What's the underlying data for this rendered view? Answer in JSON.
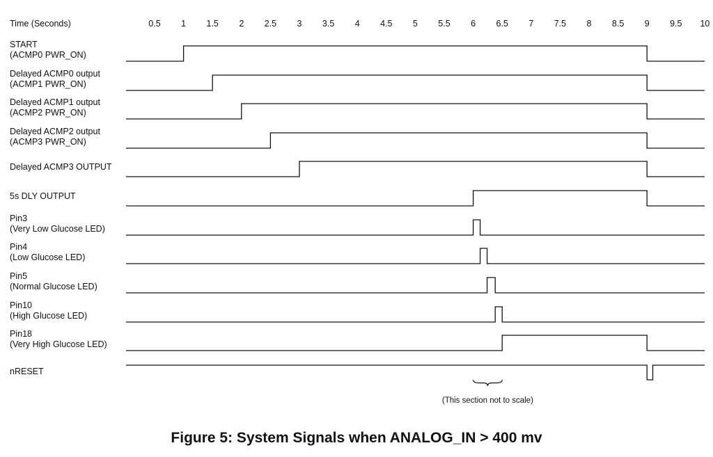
{
  "header": {
    "axis_label": "Time (Seconds)",
    "ticks": [
      "0.5",
      "1",
      "1.5",
      "2",
      "2.5",
      "3",
      "3.5",
      "4",
      "4.5",
      "5",
      "5.5",
      "6",
      "6.5",
      "7",
      "7.5",
      "8",
      "8.5",
      "9",
      "9.5",
      "10"
    ]
  },
  "signals": [
    {
      "label_lines": [
        "START",
        "(ACMP0 PWR_ON)"
      ],
      "initial": 0,
      "transitions": [
        1,
        9
      ]
    },
    {
      "label_lines": [
        "Delayed ACMP0 output",
        "(ACMP1 PWR_ON)"
      ],
      "initial": 0,
      "transitions": [
        1.5,
        9
      ]
    },
    {
      "label_lines": [
        "Delayed ACMP1 output",
        "(ACMP2 PWR_ON)"
      ],
      "initial": 0,
      "transitions": [
        2,
        9
      ]
    },
    {
      "label_lines": [
        "Delayed ACMP2 output",
        "(ACMP3 PWR_ON)"
      ],
      "initial": 0,
      "transitions": [
        2.5,
        9
      ]
    },
    {
      "label_lines": [
        "Delayed ACMP3 OUTPUT"
      ],
      "initial": 0,
      "transitions": [
        3,
        9
      ]
    },
    {
      "label_lines": [
        "5s DLY OUTPUT"
      ],
      "initial": 0,
      "transitions": [
        6,
        9
      ]
    },
    {
      "label_lines": [
        "Pin3",
        "(Very Low Glucose LED)"
      ],
      "initial": 0,
      "transitions": [
        6,
        6.12
      ]
    },
    {
      "label_lines": [
        "Pin4",
        "(Low Glucose LED)"
      ],
      "initial": 0,
      "transitions": [
        6.12,
        6.24
      ]
    },
    {
      "label_lines": [
        "Pin5",
        "(Normal Glucose LED)"
      ],
      "initial": 0,
      "transitions": [
        6.24,
        6.38
      ]
    },
    {
      "label_lines": [
        "Pin10",
        "(High Glucose LED)"
      ],
      "initial": 0,
      "transitions": [
        6.38,
        6.5
      ]
    },
    {
      "label_lines": [
        "Pin18",
        "(Very High Glucose LED)"
      ],
      "initial": 0,
      "transitions": [
        6.5,
        9
      ]
    },
    {
      "label_lines": [
        "nRESET"
      ],
      "initial": 1,
      "transitions": [
        9,
        9.1
      ]
    }
  ],
  "annotation": {
    "text": "(This section not to scale)",
    "brace_range": [
      6,
      6.5
    ]
  },
  "caption": "Figure 5: System Signals when ANALOG_IN > 400 mv"
}
